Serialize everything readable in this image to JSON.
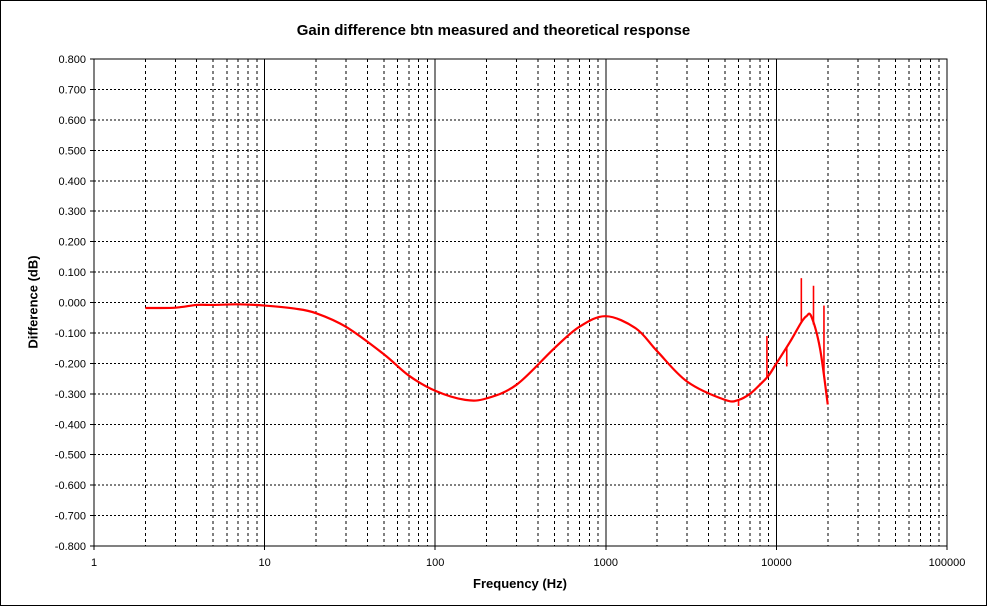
{
  "chart_data": {
    "type": "line",
    "title": "Gain difference btn measured and theoretical response",
    "xlabel": "Frequency (Hz)",
    "ylabel": "Difference (dB)",
    "xscale": "log",
    "xlim": [
      1,
      100000
    ],
    "ylim": [
      -0.8,
      0.8
    ],
    "ystep": 0.1,
    "grid": true,
    "x_tick_labels": [
      "1",
      "10",
      "100",
      "1000",
      "10000",
      "100000"
    ],
    "y_tick_labels": [
      "0.800",
      "0.700",
      "0.600",
      "0.500",
      "0.400",
      "0.300",
      "0.200",
      "0.100",
      "0.000",
      "-0.100",
      "-0.200",
      "-0.300",
      "-0.400",
      "-0.500",
      "-0.600",
      "-0.700",
      "-0.800"
    ],
    "series": [
      {
        "color": "#ff0000",
        "x": [
          2,
          3,
          4,
          5,
          7,
          10,
          15,
          20,
          30,
          50,
          70,
          100,
          150,
          200,
          300,
          500,
          700,
          1000,
          1500,
          2000,
          3000,
          5000,
          6000,
          7000,
          8000,
          9000,
          10000,
          12000,
          14000,
          15000,
          16000,
          18000,
          20000
        ],
        "y": [
          -0.018,
          -0.017,
          -0.008,
          -0.008,
          -0.006,
          -0.01,
          -0.02,
          -0.035,
          -0.08,
          -0.17,
          -0.24,
          -0.29,
          -0.32,
          -0.315,
          -0.27,
          -0.15,
          -0.08,
          -0.045,
          -0.085,
          -0.16,
          -0.26,
          -0.32,
          -0.32,
          -0.3,
          -0.27,
          -0.24,
          -0.2,
          -0.13,
          -0.065,
          -0.045,
          -0.045,
          -0.15,
          -0.335
        ]
      }
    ],
    "spikes": [
      {
        "x": 6000,
        "y": -0.34
      },
      {
        "x": 8800,
        "y": -0.11
      },
      {
        "x": 11500,
        "y": -0.21
      },
      {
        "x": 14000,
        "y": 0.08
      },
      {
        "x": 16500,
        "y": 0.055
      },
      {
        "x": 19000,
        "y": -0.01
      }
    ]
  }
}
